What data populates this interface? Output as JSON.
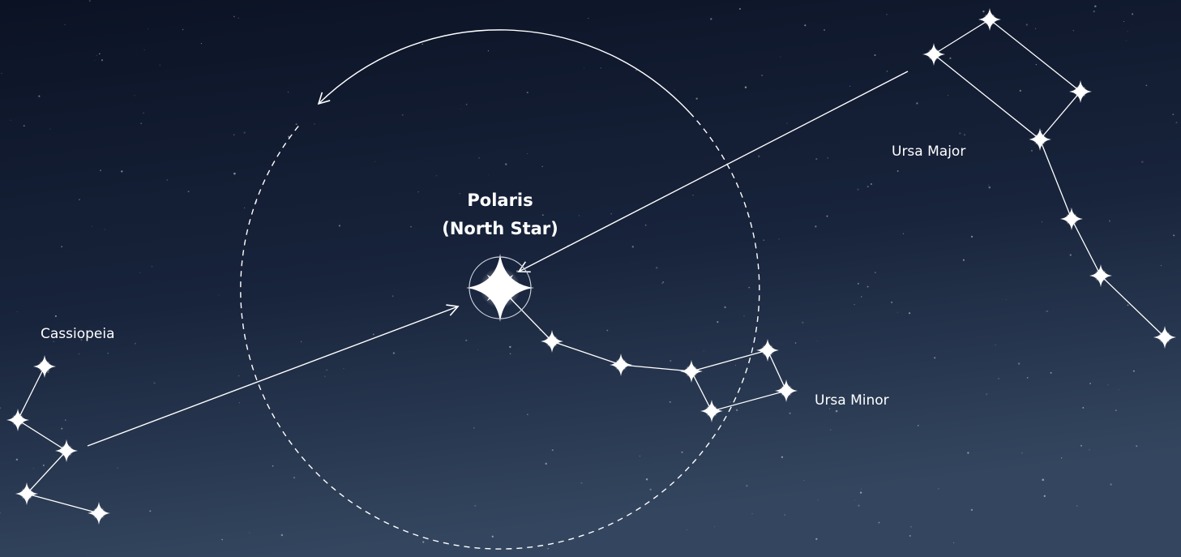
{
  "labels": {
    "polaris_title": "Polaris",
    "polaris_subtitle": "(North Star)",
    "ursa_major": "Ursa Major",
    "ursa_minor": "Ursa Minor",
    "cassiopeia": "Cassiopeia"
  }
}
